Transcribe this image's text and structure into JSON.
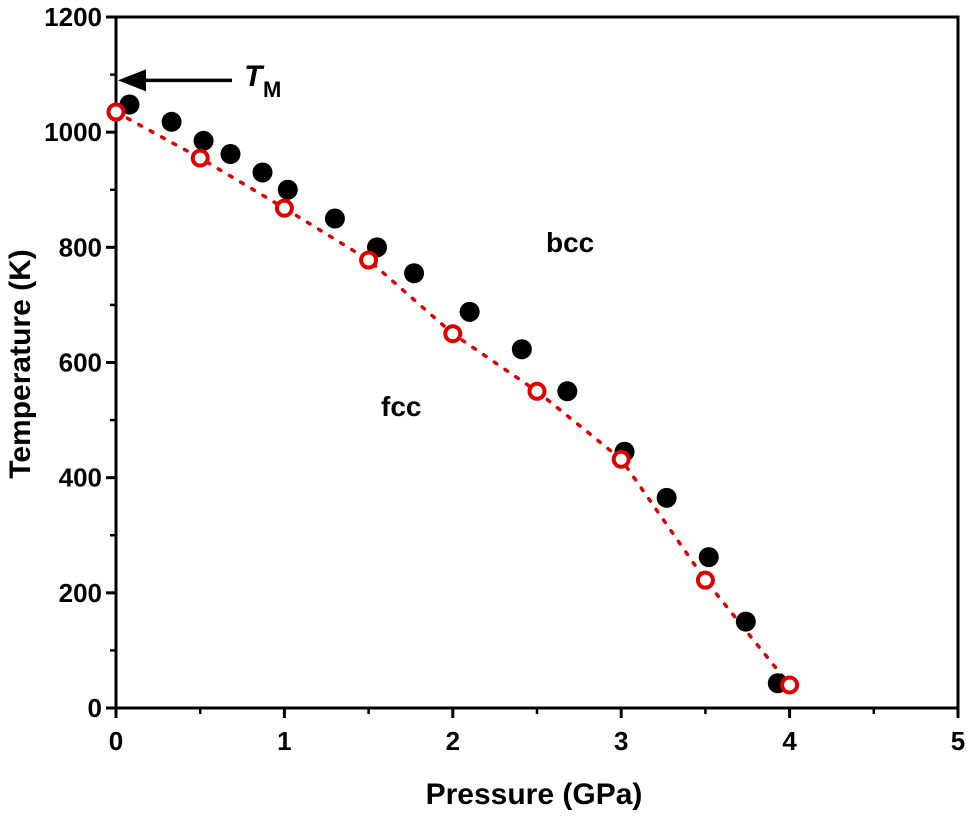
{
  "chart_data": {
    "type": "scatter",
    "xlabel": "Pressure (GPa)",
    "ylabel": "Temperature (K)",
    "xlim": [
      0,
      5
    ],
    "ylim": [
      0,
      1200
    ],
    "xticks": [
      "0",
      "1",
      "2",
      "3",
      "4",
      "5"
    ],
    "yticks": [
      "0",
      "200",
      "400",
      "600",
      "800",
      "1000",
      "1200"
    ],
    "grid": false,
    "series": [
      {
        "marker": "filled-circle",
        "color": "#000000",
        "x": [
          0.08,
          0.33,
          0.52,
          0.68,
          0.87,
          1.02,
          1.3,
          1.55,
          1.77,
          2.1,
          2.41,
          2.68,
          3.02,
          3.27,
          3.52,
          3.74,
          3.93
        ],
        "y": [
          1048,
          1018,
          985,
          962,
          930,
          900,
          850,
          800,
          755,
          688,
          623,
          550,
          445,
          365,
          262,
          150,
          43
        ]
      },
      {
        "marker": "open-circle",
        "color": "#e00000",
        "x": [
          0.0,
          0.5,
          1.0,
          1.5,
          2.0,
          2.5,
          3.0,
          3.5,
          4.0
        ],
        "y": [
          1035,
          955,
          868,
          778,
          650,
          550,
          432,
          222,
          40
        ]
      }
    ],
    "fit_line": {
      "style": "dotted",
      "color": "#e00000",
      "x": [
        0.0,
        0.5,
        1.0,
        1.5,
        2.0,
        2.5,
        3.0,
        3.5,
        4.0
      ],
      "y": [
        1035,
        955,
        868,
        778,
        650,
        550,
        432,
        222,
        40
      ]
    },
    "annotations": {
      "bcc": "bcc",
      "fcc": "fcc",
      "tm_main": "T",
      "tm_sub": "M",
      "tm_value": 1090
    }
  }
}
